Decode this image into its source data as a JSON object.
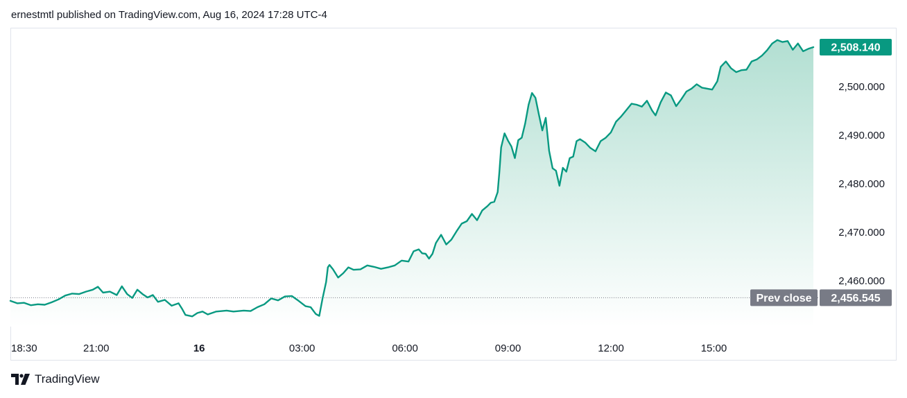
{
  "header": {
    "published_text": "ernestmtl published on TradingView.com, Aug 16, 2024 17:28 UTC-4"
  },
  "footer": {
    "brand": "TradingView",
    "logo_icon": "tradingview-logo-icon"
  },
  "colors": {
    "line": "#089981",
    "area_top": "#b2dfd2",
    "area_bottom": "#ffffff",
    "last_price_badge": "#089981",
    "prev_close_badge": "#787b86",
    "axis_text": "#131722"
  },
  "chart_data": {
    "type": "area",
    "title": "",
    "xlabel": "",
    "ylabel": "",
    "ylim": [
      2450.6,
      2512.0
    ],
    "y_ticks": [
      {
        "value": 2460,
        "label": "2,460.000"
      },
      {
        "value": 2470,
        "label": "2,470.000"
      },
      {
        "value": 2480,
        "label": "2,480.000"
      },
      {
        "value": 2490,
        "label": "2,490.000"
      },
      {
        "value": 2500,
        "label": "2,500.000"
      }
    ],
    "x_ticks": [
      {
        "t": 0.0,
        "label": "18:30",
        "bold": false
      },
      {
        "t": 2.5,
        "label": "21:00",
        "bold": false
      },
      {
        "t": 5.5,
        "label": "16",
        "bold": true
      },
      {
        "t": 8.5,
        "label": "03:00",
        "bold": false
      },
      {
        "t": 11.5,
        "label": "06:00",
        "bold": false
      },
      {
        "t": 14.5,
        "label": "09:00",
        "bold": false
      },
      {
        "t": 17.5,
        "label": "12:00",
        "bold": false
      },
      {
        "t": 20.5,
        "label": "15:00",
        "bold": false
      }
    ],
    "xlim": [
      0,
      23.4
    ],
    "last_price": {
      "value": 2508.14,
      "label": "2,508.140"
    },
    "prev_close": {
      "value": 2456.545,
      "label": "2,456.545",
      "title": "Prev close"
    },
    "series": [
      {
        "points": [
          [
            0.0,
            2455.9
          ],
          [
            0.2,
            2455.4
          ],
          [
            0.4,
            2455.5
          ],
          [
            0.6,
            2455.0
          ],
          [
            0.8,
            2455.2
          ],
          [
            1.0,
            2455.1
          ],
          [
            1.2,
            2455.6
          ],
          [
            1.4,
            2456.2
          ],
          [
            1.6,
            2457.0
          ],
          [
            1.8,
            2457.4
          ],
          [
            2.0,
            2457.3
          ],
          [
            2.2,
            2457.8
          ],
          [
            2.4,
            2458.2
          ],
          [
            2.55,
            2458.8
          ],
          [
            2.7,
            2457.6
          ],
          [
            2.9,
            2457.8
          ],
          [
            3.1,
            2457.1
          ],
          [
            3.25,
            2458.9
          ],
          [
            3.4,
            2457.3
          ],
          [
            3.55,
            2456.5
          ],
          [
            3.7,
            2458.2
          ],
          [
            3.85,
            2457.3
          ],
          [
            4.0,
            2456.6
          ],
          [
            4.15,
            2457.1
          ],
          [
            4.3,
            2455.7
          ],
          [
            4.5,
            2456.1
          ],
          [
            4.7,
            2454.9
          ],
          [
            4.9,
            2455.4
          ],
          [
            5.0,
            2454.3
          ],
          [
            5.1,
            2453.0
          ],
          [
            5.3,
            2452.7
          ],
          [
            5.45,
            2453.4
          ],
          [
            5.6,
            2453.7
          ],
          [
            5.75,
            2453.1
          ],
          [
            6.0,
            2453.7
          ],
          [
            6.3,
            2453.9
          ],
          [
            6.5,
            2453.7
          ],
          [
            6.8,
            2453.9
          ],
          [
            7.0,
            2453.8
          ],
          [
            7.2,
            2454.6
          ],
          [
            7.4,
            2455.2
          ],
          [
            7.6,
            2456.4
          ],
          [
            7.8,
            2456.0
          ],
          [
            8.0,
            2456.8
          ],
          [
            8.2,
            2456.9
          ],
          [
            8.4,
            2455.9
          ],
          [
            8.6,
            2454.8
          ],
          [
            8.75,
            2454.6
          ],
          [
            8.9,
            2453.2
          ],
          [
            9.0,
            2452.8
          ],
          [
            9.1,
            2456.5
          ],
          [
            9.2,
            2459.8
          ],
          [
            9.25,
            2462.8
          ],
          [
            9.3,
            2463.3
          ],
          [
            9.4,
            2462.4
          ],
          [
            9.55,
            2460.7
          ],
          [
            9.7,
            2461.6
          ],
          [
            9.85,
            2462.8
          ],
          [
            10.0,
            2462.3
          ],
          [
            10.2,
            2462.4
          ],
          [
            10.4,
            2463.2
          ],
          [
            10.6,
            2462.9
          ],
          [
            10.8,
            2462.5
          ],
          [
            11.0,
            2462.8
          ],
          [
            11.2,
            2463.2
          ],
          [
            11.4,
            2464.2
          ],
          [
            11.6,
            2464.0
          ],
          [
            11.75,
            2466.1
          ],
          [
            11.9,
            2466.5
          ],
          [
            12.0,
            2465.7
          ],
          [
            12.1,
            2465.6
          ],
          [
            12.2,
            2464.6
          ],
          [
            12.3,
            2465.6
          ],
          [
            12.4,
            2467.8
          ],
          [
            12.55,
            2469.5
          ],
          [
            12.7,
            2467.5
          ],
          [
            12.85,
            2468.5
          ],
          [
            13.0,
            2470.2
          ],
          [
            13.15,
            2471.8
          ],
          [
            13.3,
            2472.3
          ],
          [
            13.45,
            2473.8
          ],
          [
            13.6,
            2472.5
          ],
          [
            13.75,
            2474.5
          ],
          [
            13.9,
            2475.4
          ],
          [
            14.0,
            2476.1
          ],
          [
            14.1,
            2476.3
          ],
          [
            14.2,
            2478.3
          ],
          [
            14.25,
            2482.5
          ],
          [
            14.3,
            2487.5
          ],
          [
            14.4,
            2490.4
          ],
          [
            14.5,
            2488.9
          ],
          [
            14.6,
            2487.7
          ],
          [
            14.7,
            2485.3
          ],
          [
            14.8,
            2489.0
          ],
          [
            14.9,
            2489.5
          ],
          [
            15.0,
            2492.4
          ],
          [
            15.1,
            2496.3
          ],
          [
            15.2,
            2498.7
          ],
          [
            15.3,
            2497.7
          ],
          [
            15.4,
            2494.3
          ],
          [
            15.5,
            2491.0
          ],
          [
            15.6,
            2493.6
          ],
          [
            15.7,
            2486.8
          ],
          [
            15.8,
            2483.2
          ],
          [
            15.9,
            2482.7
          ],
          [
            16.0,
            2479.6
          ],
          [
            16.1,
            2483.3
          ],
          [
            16.2,
            2482.5
          ],
          [
            16.3,
            2485.3
          ],
          [
            16.4,
            2485.6
          ],
          [
            16.5,
            2488.8
          ],
          [
            16.6,
            2489.2
          ],
          [
            16.75,
            2488.5
          ],
          [
            16.9,
            2487.4
          ],
          [
            17.05,
            2486.7
          ],
          [
            17.2,
            2488.8
          ],
          [
            17.35,
            2489.5
          ],
          [
            17.5,
            2490.6
          ],
          [
            17.65,
            2492.8
          ],
          [
            17.8,
            2493.9
          ],
          [
            17.95,
            2495.2
          ],
          [
            18.1,
            2496.5
          ],
          [
            18.25,
            2496.3
          ],
          [
            18.4,
            2495.9
          ],
          [
            18.55,
            2497.1
          ],
          [
            18.7,
            2495.1
          ],
          [
            18.8,
            2494.1
          ],
          [
            18.95,
            2496.8
          ],
          [
            19.1,
            2498.8
          ],
          [
            19.25,
            2498.2
          ],
          [
            19.4,
            2496.0
          ],
          [
            19.55,
            2497.4
          ],
          [
            19.7,
            2499.0
          ],
          [
            19.85,
            2499.6
          ],
          [
            20.0,
            2500.5
          ],
          [
            20.15,
            2499.8
          ],
          [
            20.3,
            2499.6
          ],
          [
            20.45,
            2499.4
          ],
          [
            20.6,
            2501.1
          ],
          [
            20.7,
            2504.1
          ],
          [
            20.85,
            2505.2
          ],
          [
            21.0,
            2503.8
          ],
          [
            21.15,
            2503.0
          ],
          [
            21.3,
            2503.4
          ],
          [
            21.45,
            2503.5
          ],
          [
            21.6,
            2505.2
          ],
          [
            21.75,
            2505.6
          ],
          [
            21.9,
            2506.4
          ],
          [
            22.05,
            2507.5
          ],
          [
            22.2,
            2508.9
          ],
          [
            22.35,
            2509.6
          ],
          [
            22.5,
            2509.2
          ],
          [
            22.65,
            2509.4
          ],
          [
            22.8,
            2507.6
          ],
          [
            22.95,
            2508.9
          ],
          [
            23.1,
            2507.3
          ],
          [
            23.25,
            2507.8
          ],
          [
            23.4,
            2508.14
          ]
        ]
      }
    ]
  }
}
